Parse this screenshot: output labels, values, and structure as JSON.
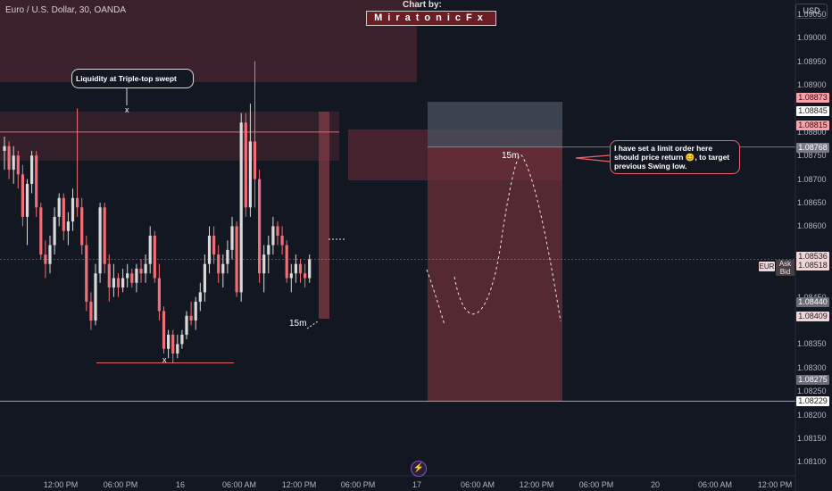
{
  "header": {
    "symbol_title": "Euro / U.S. Dollar, 30, OANDA",
    "credit_title": "Chart by:",
    "credit_name": "MiratonicFx",
    "currency_button": "USD"
  },
  "y_axis": {
    "ticks": [
      "1.09050",
      "1.09000",
      "1.08950",
      "1.08900",
      "1.08800",
      "1.08750",
      "1.08700",
      "1.08650",
      "1.08600",
      "1.08450",
      "1.08350",
      "1.08300",
      "1.08250",
      "1.08200",
      "1.08150",
      "1.08100"
    ],
    "price_tags": [
      {
        "value": "1.08873",
        "color": "#f7a1a8",
        "text_color": "#3a0d12"
      },
      {
        "value": "1.08845",
        "color": "#ffffff",
        "text_color": "#222222"
      },
      {
        "value": "1.08815",
        "color": "#f7a1a8",
        "text_color": "#3a0d12"
      },
      {
        "value": "1.08768",
        "color": "#787b86",
        "text_color": "#ffffff"
      },
      {
        "value": "1.08536",
        "color": "#f0d6d8",
        "text_color": "#222222"
      },
      {
        "value": "1.08518",
        "color": "#f0d6d8",
        "text_color": "#222222"
      },
      {
        "value": "1.08440",
        "color": "#6b6e78",
        "text_color": "#ffffff"
      },
      {
        "value": "1.08409",
        "color": "#f0d6d8",
        "text_color": "#222222"
      },
      {
        "value": "1.08275",
        "color": "#6b6e78",
        "text_color": "#ffffff"
      },
      {
        "value": "1.08229",
        "color": "#ffffff",
        "text_color": "#222222"
      }
    ],
    "ask_label": "Ask",
    "bid_label": "Bid",
    "symbol_tag": "EUR"
  },
  "x_axis": {
    "ticks": [
      "12:00 PM",
      "06:00 PM",
      "16",
      "06:00 AM",
      "12:00 PM",
      "06:00 PM",
      "17",
      "06:00 AM",
      "12:00 PM",
      "06:00 PM",
      "20",
      "06:00 AM",
      "12:00 PM"
    ]
  },
  "annotations": {
    "liquidity_callout": "Liquidity at Triple-top swept",
    "order_callout": "I have set a limit order here should price return 😊, to target previous Swing low.",
    "marker_x": "x",
    "tf_label": "15m"
  },
  "colors": {
    "background": "#131722",
    "bull_candle": "#d9d9d9",
    "bear_candle": "#f06e78",
    "zone": "#5c2a33",
    "short_target": "#6b3038",
    "short_stop": "#4a5360"
  },
  "chart_data": {
    "type": "candlestick",
    "symbol": "Euro / U.S. Dollar",
    "interval": "30",
    "ylim": [
      1.0808,
      1.0908
    ],
    "candles": [
      [
        1.0876,
        1.0879,
        1.0872,
        1.0877
      ],
      [
        1.0877,
        1.0878,
        1.087,
        1.0872
      ],
      [
        1.0872,
        1.0877,
        1.0869,
        1.0875
      ],
      [
        1.0875,
        1.0876,
        1.0868,
        1.0871
      ],
      [
        1.0871,
        1.0873,
        1.086,
        1.0862
      ],
      [
        1.0862,
        1.087,
        1.0856,
        1.0869
      ],
      [
        1.0869,
        1.0876,
        1.0867,
        1.0875
      ],
      [
        1.0875,
        1.0876,
        1.0862,
        1.0864
      ],
      [
        1.0864,
        1.0865,
        1.0853,
        1.0854
      ],
      [
        1.0854,
        1.0857,
        1.0849,
        1.0852
      ],
      [
        1.0852,
        1.0858,
        1.085,
        1.0856
      ],
      [
        1.0856,
        1.0864,
        1.0854,
        1.0862
      ],
      [
        1.0862,
        1.0867,
        1.086,
        1.0866
      ],
      [
        1.0866,
        1.0867,
        1.0857,
        1.0859
      ],
      [
        1.0859,
        1.0863,
        1.0856,
        1.0861
      ],
      [
        1.0861,
        1.0868,
        1.0859,
        1.0866
      ],
      [
        1.0866,
        1.0885,
        1.0862,
        1.0864
      ],
      [
        1.0864,
        1.0866,
        1.0854,
        1.0856
      ],
      [
        1.0856,
        1.0858,
        1.0842,
        1.0844
      ],
      [
        1.0844,
        1.0846,
        1.0838,
        1.084
      ],
      [
        1.084,
        1.0852,
        1.0839,
        1.085
      ],
      [
        1.085,
        1.0865,
        1.0848,
        1.0864
      ],
      [
        1.0864,
        1.0865,
        1.085,
        1.0852
      ],
      [
        1.0852,
        1.0854,
        1.0844,
        1.0847
      ],
      [
        1.0847,
        1.0852,
        1.0845,
        1.0849
      ],
      [
        1.0849,
        1.085,
        1.0845,
        1.0847
      ],
      [
        1.0847,
        1.0851,
        1.0846,
        1.0849
      ],
      [
        1.0849,
        1.0852,
        1.0847,
        1.085
      ],
      [
        1.085,
        1.0851,
        1.0847,
        1.0848
      ],
      [
        1.0848,
        1.0852,
        1.0846,
        1.0851
      ],
      [
        1.0851,
        1.0853,
        1.0848,
        1.085
      ],
      [
        1.085,
        1.0854,
        1.0848,
        1.0852
      ],
      [
        1.0852,
        1.086,
        1.085,
        1.0858
      ],
      [
        1.0858,
        1.0859,
        1.0848,
        1.0849
      ],
      [
        1.0849,
        1.0852,
        1.084,
        1.0842
      ],
      [
        1.0842,
        1.0843,
        1.0833,
        1.0834
      ],
      [
        1.0834,
        1.0838,
        1.0832,
        1.0837
      ],
      [
        1.0837,
        1.0838,
        1.0831,
        1.0833
      ],
      [
        1.0833,
        1.0837,
        1.0832,
        1.0835
      ],
      [
        1.0835,
        1.0838,
        1.0834,
        1.0837
      ],
      [
        1.0837,
        1.0842,
        1.0836,
        1.0841
      ],
      [
        1.0841,
        1.0844,
        1.0839,
        1.084
      ],
      [
        1.084,
        1.0845,
        1.0838,
        1.0844
      ],
      [
        1.0844,
        1.0848,
        1.0842,
        1.0846
      ],
      [
        1.0846,
        1.0854,
        1.0844,
        1.0852
      ],
      [
        1.0852,
        1.086,
        1.085,
        1.0858
      ],
      [
        1.0858,
        1.086,
        1.0852,
        1.0854
      ],
      [
        1.0854,
        1.0856,
        1.0848,
        1.085
      ],
      [
        1.085,
        1.0854,
        1.0847,
        1.0852
      ],
      [
        1.0852,
        1.0857,
        1.085,
        1.0855
      ],
      [
        1.0855,
        1.0862,
        1.0853,
        1.086
      ],
      [
        1.086,
        1.0861,
        1.0845,
        1.0846
      ],
      [
        1.0846,
        1.0884,
        1.0844,
        1.0882
      ],
      [
        1.0882,
        1.0884,
        1.0862,
        1.0864
      ],
      [
        1.0864,
        1.0886,
        1.0862,
        1.0878
      ],
      [
        1.0878,
        1.0895,
        1.0864,
        1.087
      ],
      [
        1.087,
        1.0872,
        1.0848,
        1.085
      ],
      [
        1.085,
        1.0856,
        1.0846,
        1.0854
      ],
      [
        1.0854,
        1.0858,
        1.085,
        1.0856
      ],
      [
        1.0856,
        1.0862,
        1.0854,
        1.086
      ],
      [
        1.086,
        1.0861,
        1.0856,
        1.0858
      ],
      [
        1.0858,
        1.086,
        1.0854,
        1.0856
      ],
      [
        1.0856,
        1.0857,
        1.0848,
        1.0849
      ],
      [
        1.0849,
        1.0852,
        1.0846,
        1.085
      ],
      [
        1.085,
        1.0854,
        1.0848,
        1.0852
      ],
      [
        1.0852,
        1.0853,
        1.0848,
        1.085
      ],
      [
        1.085,
        1.0852,
        1.0847,
        1.0849
      ],
      [
        1.0849,
        1.0854,
        1.0848,
        1.0853
      ]
    ],
    "levels": {
      "triple_top_liquidity": 1.088,
      "swing_low": 1.0831,
      "limit_entry": 1.08768,
      "stop_zone_top": 1.08845,
      "target": 1.08229
    }
  }
}
